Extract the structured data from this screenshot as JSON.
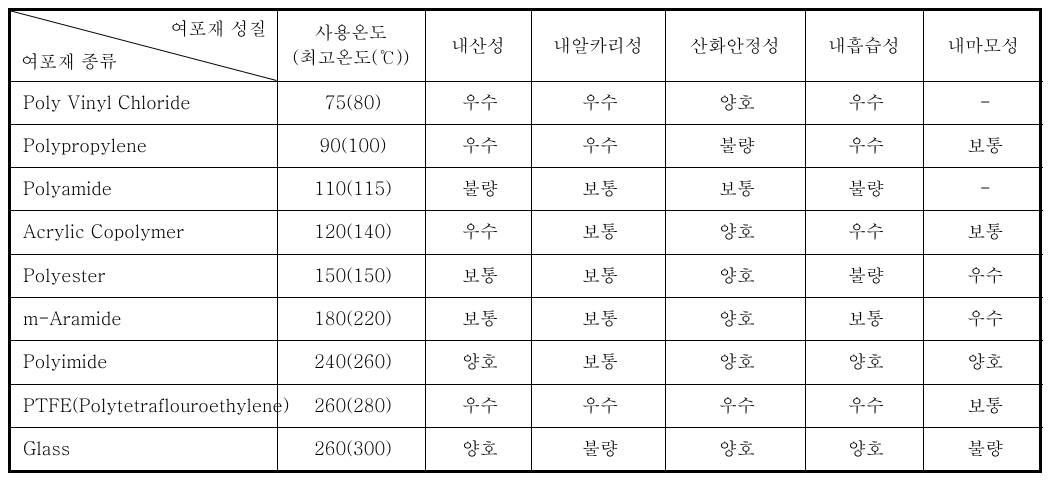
{
  "table": {
    "header": {
      "diag_top": "여포재 성질",
      "diag_bottom": "여포재 종류",
      "temp_line1": "사용온도",
      "temp_line2": "(최고온도(℃))",
      "acid": "내산성",
      "alkali": "내알카리성",
      "oxid": "산화안정성",
      "moist": "내흡습성",
      "abr": "내마모성"
    },
    "columns": [
      "type",
      "temp",
      "acid",
      "alkali",
      "oxid",
      "moist",
      "abr"
    ],
    "rows": [
      {
        "type": "Poly Vinyl Chloride",
        "temp": "75(80)",
        "acid": "우수",
        "alkali": "우수",
        "oxid": "양호",
        "moist": "우수",
        "abr": "-"
      },
      {
        "type": "Polypropylene",
        "temp": "90(100)",
        "acid": "우수",
        "alkali": "우수",
        "oxid": "불량",
        "moist": "우수",
        "abr": "보통"
      },
      {
        "type": "Polyamide",
        "temp": "110(115)",
        "acid": "불량",
        "alkali": "보통",
        "oxid": "보통",
        "moist": "불량",
        "abr": "-"
      },
      {
        "type": "Acrylic Copolymer",
        "temp": "120(140)",
        "acid": "우수",
        "alkali": "보통",
        "oxid": "양호",
        "moist": "우수",
        "abr": "보통"
      },
      {
        "type": "Polyester",
        "temp": "150(150)",
        "acid": "보통",
        "alkali": "보통",
        "oxid": "양호",
        "moist": "불량",
        "abr": "우수"
      },
      {
        "type": "m-Aramide",
        "temp": "180(220)",
        "acid": "보통",
        "alkali": "보통",
        "oxid": "양호",
        "moist": "보통",
        "abr": "우수"
      },
      {
        "type": "Polyimide",
        "temp": "240(260)",
        "acid": "양호",
        "alkali": "보통",
        "oxid": "양호",
        "moist": "양호",
        "abr": "양호"
      },
      {
        "type": "PTFE(Polytetraflouroethylene)",
        "temp": "260(280)",
        "acid": "우수",
        "alkali": "우수",
        "oxid": "우수",
        "moist": "우수",
        "abr": "보통"
      },
      {
        "type": "Glass",
        "temp": "260(300)",
        "acid": "양호",
        "alkali": "불량",
        "oxid": "양호",
        "moist": "양호",
        "abr": "불량"
      }
    ],
    "colors": {
      "border": "#000000",
      "background": "#ffffff",
      "text": "#000000"
    },
    "font": {
      "family": "Batang / Times",
      "size_pt": 14
    }
  }
}
